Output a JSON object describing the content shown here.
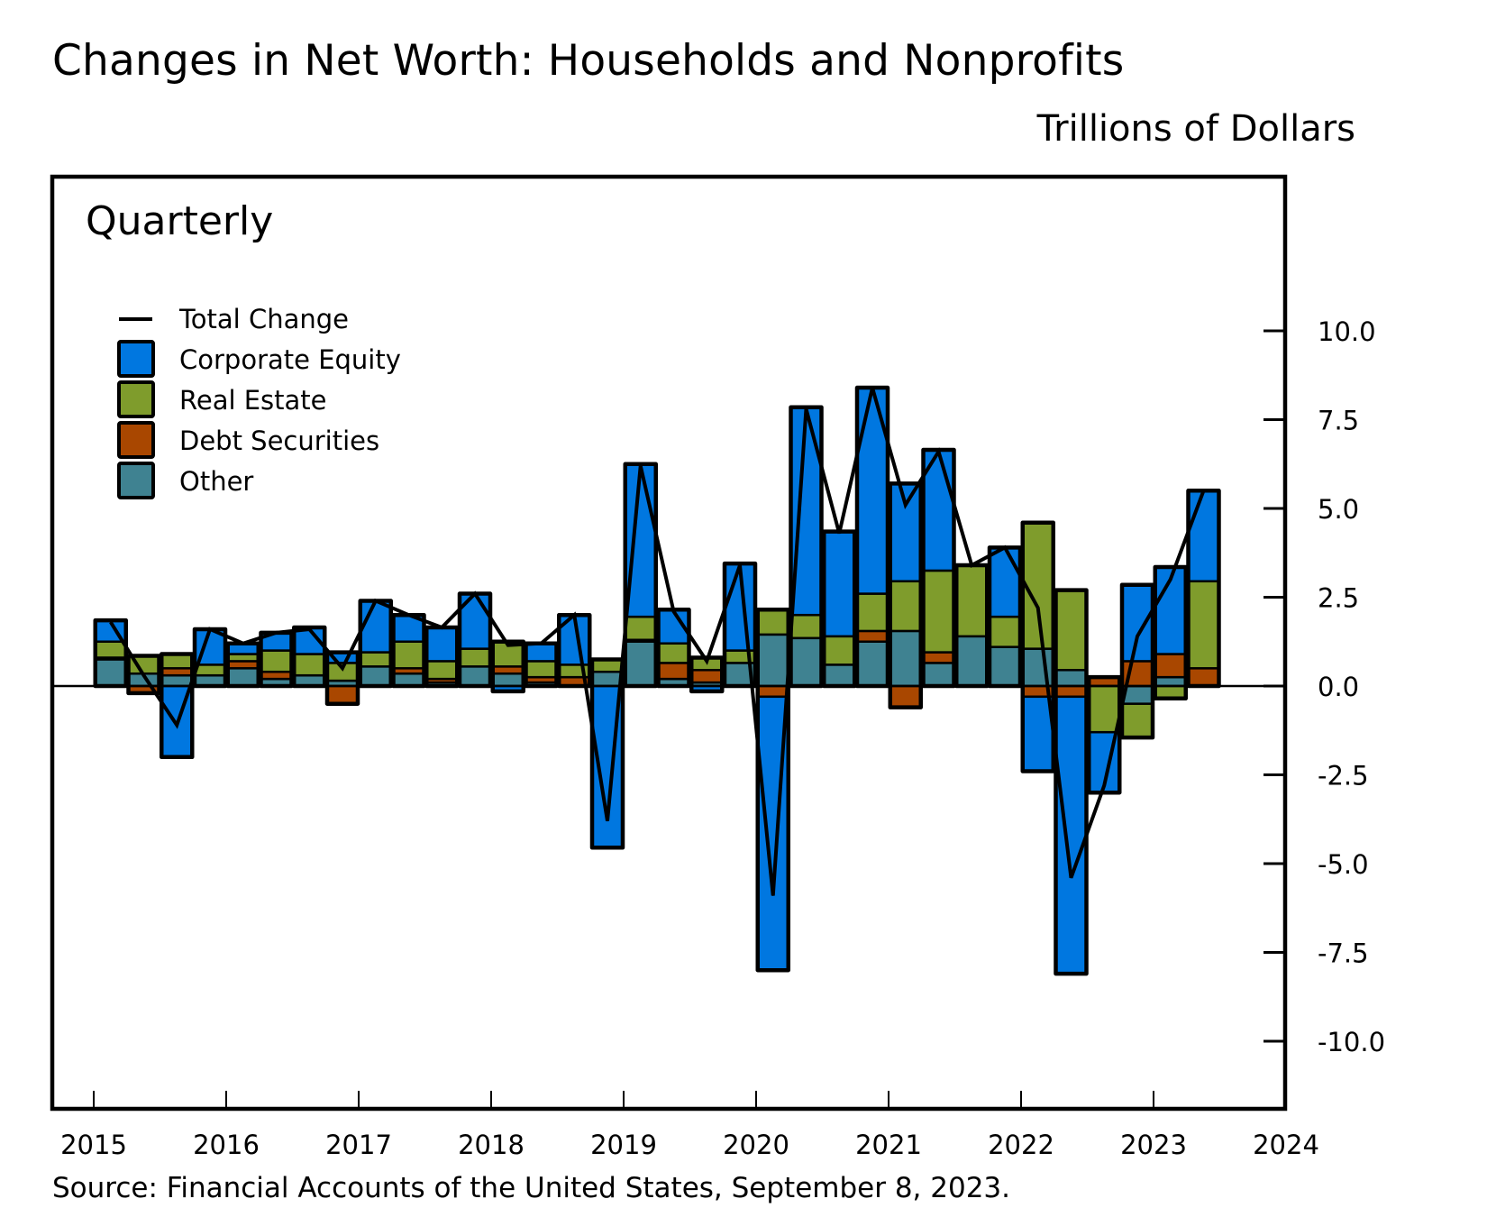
{
  "header": {
    "title": "Changes in Net Worth: Households and Nonprofits",
    "units": "Trillions of Dollars"
  },
  "footer": {
    "source": "Source: Financial Accounts of the United States, September 8, 2023."
  },
  "chart_data": {
    "type": "bar",
    "stacked": true,
    "title": "Changes in Net Worth: Households and Nonprofits",
    "subtitle": "Quarterly",
    "ylabel": "Trillions of Dollars",
    "xlabel": "",
    "ylim": [
      -12,
      12.5
    ],
    "yticks": [
      10.0,
      7.5,
      5.0,
      2.5,
      0.0,
      -2.5,
      -5.0,
      -7.5,
      -10.0
    ],
    "ytick_labels": [
      "10.0",
      "7.5",
      "5.0",
      "2.5",
      "0.0",
      "-2.5",
      "-5.0",
      "-7.5",
      "-10.0"
    ],
    "yaxis_side": "right",
    "xlim": [
      2015.0,
      2024.0
    ],
    "xticks": [
      2015,
      2016,
      2017,
      2018,
      2019,
      2020,
      2021,
      2022,
      2023,
      2024
    ],
    "xtick_labels": [
      "2015",
      "2016",
      "2017",
      "2018",
      "2019",
      "2020",
      "2021",
      "2022",
      "2023",
      "2024"
    ],
    "grid": false,
    "legend_position": "top-left",
    "colors": {
      "Corporate Equity": "#0077e0",
      "Real Estate": "#7f9c2c",
      "Debt Securities": "#a94700",
      "Other": "#3f8291",
      "Total Change": "#000000"
    },
    "categories": [
      "2015Q2",
      "2015Q3",
      "2015Q4",
      "2016Q1",
      "2016Q2",
      "2016Q3",
      "2016Q4",
      "2017Q1",
      "2017Q2",
      "2017Q3",
      "2017Q4",
      "2018Q1",
      "2018Q2",
      "2018Q3",
      "2018Q4",
      "2019Q1",
      "2019Q2",
      "2019Q3",
      "2019Q4",
      "2020Q1",
      "2020Q2",
      "2020Q3",
      "2020Q4",
      "2021Q1",
      "2021Q2",
      "2021Q3",
      "2021Q4",
      "2022Q1",
      "2022Q2",
      "2022Q3",
      "2022Q4",
      "2023Q1",
      "2023Q2",
      "2023Q3"
    ],
    "x": [
      2015.25,
      2015.5,
      2015.75,
      2016.0,
      2016.25,
      2016.5,
      2016.75,
      2017.0,
      2017.25,
      2017.5,
      2017.75,
      2018.0,
      2018.25,
      2018.5,
      2018.75,
      2019.0,
      2019.25,
      2019.5,
      2019.75,
      2020.0,
      2020.25,
      2020.5,
      2020.75,
      2021.0,
      2021.25,
      2021.5,
      2021.75,
      2022.0,
      2022.25,
      2022.5,
      2022.75,
      2023.0,
      2023.25,
      2023.5
    ],
    "series": [
      {
        "name": "Other",
        "values": [
          0.75,
          0.35,
          0.3,
          0.3,
          0.5,
          0.2,
          0.3,
          0.15,
          0.55,
          0.35,
          0.1,
          0.55,
          0.35,
          0.1,
          0.0,
          0.4,
          1.25,
          0.2,
          0.1,
          0.65,
          1.45,
          1.35,
          0.6,
          1.25,
          1.55,
          0.65,
          1.4,
          1.1,
          1.05,
          0.45,
          0.0,
          -0.5,
          0.25,
          0.0
        ]
      },
      {
        "name": "Debt Securities",
        "values": [
          0.05,
          -0.2,
          0.2,
          0.0,
          0.2,
          0.2,
          0.0,
          -0.5,
          0.0,
          0.15,
          0.1,
          0.0,
          0.2,
          0.15,
          0.25,
          0.0,
          0.05,
          0.45,
          0.35,
          0.0,
          -0.3,
          0.0,
          0.0,
          0.3,
          -0.6,
          0.3,
          0.0,
          0.0,
          -0.3,
          -0.3,
          0.25,
          0.7,
          0.65,
          0.5
        ]
      },
      {
        "name": "Real Estate",
        "values": [
          0.45,
          0.5,
          0.4,
          0.3,
          0.2,
          0.6,
          0.6,
          0.5,
          0.4,
          0.75,
          0.5,
          0.5,
          0.7,
          0.45,
          0.35,
          0.35,
          0.65,
          0.55,
          0.35,
          0.35,
          0.7,
          0.65,
          0.8,
          1.05,
          1.4,
          2.3,
          2.0,
          0.85,
          3.55,
          2.25,
          -1.3,
          -0.95,
          -0.35,
          2.45
        ]
      },
      {
        "name": "Corporate Equity",
        "values": [
          0.6,
          0.0,
          -2.0,
          1.0,
          0.3,
          0.5,
          0.75,
          0.3,
          1.45,
          0.75,
          0.95,
          1.55,
          -0.15,
          0.5,
          1.4,
          -4.55,
          4.3,
          0.95,
          -0.15,
          2.45,
          -7.7,
          5.85,
          2.95,
          5.8,
          2.75,
          3.4,
          0.0,
          1.95,
          -2.1,
          -7.8,
          -1.7,
          2.15,
          2.45,
          2.55
        ]
      }
    ],
    "total_change": {
      "name": "Total Change",
      "values": [
        1.8,
        0.3,
        -1.1,
        1.6,
        1.2,
        1.5,
        1.6,
        0.5,
        2.4,
        2.0,
        1.65,
        2.6,
        1.15,
        1.2,
        2.0,
        -3.8,
        6.2,
        2.1,
        0.7,
        3.4,
        -5.9,
        7.8,
        4.3,
        8.4,
        5.1,
        6.6,
        3.4,
        3.9,
        2.2,
        -5.4,
        -2.8,
        1.4,
        3.0,
        5.5
      ]
    },
    "legend": [
      "Total Change",
      "Corporate Equity",
      "Real Estate",
      "Debt Securities",
      "Other"
    ]
  }
}
